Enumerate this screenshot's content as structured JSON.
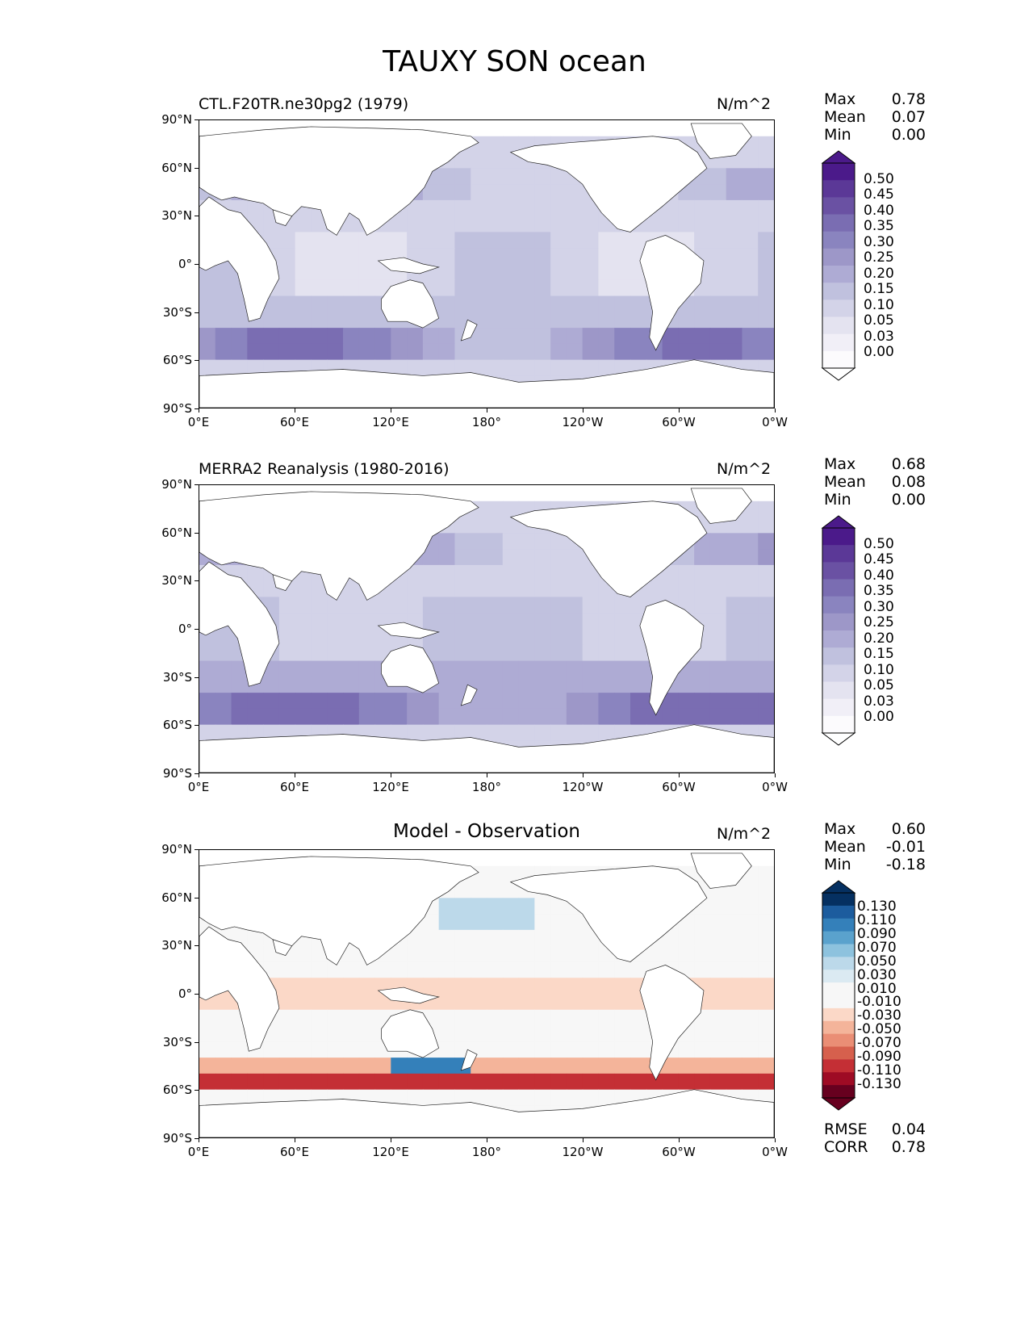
{
  "figure_title": "TAUXY SON ocean",
  "colors": {
    "seq_palette": [
      "#fcfbfd",
      "#f1eff7",
      "#e4e3f0",
      "#d3d3e8",
      "#c0c1de",
      "#aeabd4",
      "#9d97c8",
      "#8a84bf",
      "#7a6db2",
      "#6a51a3",
      "#5b3897",
      "#4b1a8a",
      "#3f007d"
    ],
    "div_palette": [
      "#67001f",
      "#9e0b24",
      "#c42f35",
      "#d6604d",
      "#ea8e75",
      "#f4b49a",
      "#fbd8c7",
      "#f7f7f7",
      "#f7f7f7",
      "#dbeaf2",
      "#bcd9ea",
      "#8dc2de",
      "#5aa2cd",
      "#3480ba",
      "#1c5c9e",
      "#053061"
    ],
    "land": "#ffffff",
    "frame": "#000000"
  },
  "panels": [
    {
      "id": "model",
      "title": "CTL.F20TR.ne30pg2 (1979)",
      "units": "N/m^2",
      "stats": [
        {
          "label": "Max",
          "value": "0.78"
        },
        {
          "label": "Mean",
          "value": "0.07"
        },
        {
          "label": "Min",
          "value": "0.00"
        }
      ],
      "colorbar_labels": [
        "0.50",
        "0.45",
        "0.40",
        "0.35",
        "0.30",
        "0.25",
        "0.20",
        "0.15",
        "0.10",
        "0.05",
        "0.03",
        "0.00"
      ]
    },
    {
      "id": "obs",
      "title": "MERRA2 Reanalysis (1980-2016)",
      "units": "N/m^2",
      "stats": [
        {
          "label": "Max",
          "value": "0.68"
        },
        {
          "label": "Mean",
          "value": "0.08"
        },
        {
          "label": "Min",
          "value": "0.00"
        }
      ],
      "colorbar_labels": [
        "0.50",
        "0.45",
        "0.40",
        "0.35",
        "0.30",
        "0.25",
        "0.20",
        "0.15",
        "0.10",
        "0.05",
        "0.03",
        "0.00"
      ]
    },
    {
      "id": "diff",
      "title": "Model - Observation",
      "units": "N/m^2",
      "stats": [
        {
          "label": "Max",
          "value": "0.60"
        },
        {
          "label": "Mean",
          "value": "-0.01"
        },
        {
          "label": "Min",
          "value": "-0.18"
        }
      ],
      "colorbar_labels": [
        "0.130",
        "0.110",
        "0.090",
        "0.070",
        "0.050",
        "0.030",
        "0.010",
        "-0.010",
        "-0.030",
        "-0.050",
        "-0.070",
        "-0.090",
        "-0.110",
        "-0.130"
      ],
      "metrics": [
        {
          "label": "RMSE",
          "value": "0.04"
        },
        {
          "label": "CORR",
          "value": "0.78"
        }
      ]
    }
  ],
  "chart_data": {
    "type": "heatmap",
    "title": "TAUXY SON ocean",
    "xlabel": "",
    "ylabel": "",
    "x_ticks": [
      "0°E",
      "60°E",
      "120°E",
      "180°",
      "120°W",
      "60°W",
      "0°W"
    ],
    "y_ticks": [
      "90°N",
      "60°N",
      "30°N",
      "0°",
      "30°S",
      "60°S",
      "90°S"
    ],
    "xlim": [
      0,
      360
    ],
    "ylim": [
      -90,
      90
    ],
    "projection": "PlateCarree, central longitude 180",
    "series": [
      {
        "name": "CTL.F20TR.ne30pg2 (1979)",
        "levels": [
          0.0,
          0.03,
          0.05,
          0.1,
          0.15,
          0.2,
          0.25,
          0.3,
          0.35,
          0.4,
          0.45,
          0.5
        ],
        "max": 0.78,
        "mean": 0.07,
        "min": 0.0
      },
      {
        "name": "MERRA2 Reanalysis (1980-2016)",
        "levels": [
          0.0,
          0.03,
          0.05,
          0.1,
          0.15,
          0.2,
          0.25,
          0.3,
          0.35,
          0.4,
          0.45,
          0.5
        ],
        "max": 0.68,
        "mean": 0.08,
        "min": 0.0
      },
      {
        "name": "Model - Observation",
        "levels": [
          -0.13,
          -0.11,
          -0.09,
          -0.07,
          -0.05,
          -0.03,
          -0.01,
          0.01,
          0.03,
          0.05,
          0.07,
          0.09,
          0.11,
          0.13
        ],
        "max": 0.6,
        "mean": -0.01,
        "min": -0.18,
        "rmse": 0.04,
        "corr": 0.78
      }
    ]
  }
}
